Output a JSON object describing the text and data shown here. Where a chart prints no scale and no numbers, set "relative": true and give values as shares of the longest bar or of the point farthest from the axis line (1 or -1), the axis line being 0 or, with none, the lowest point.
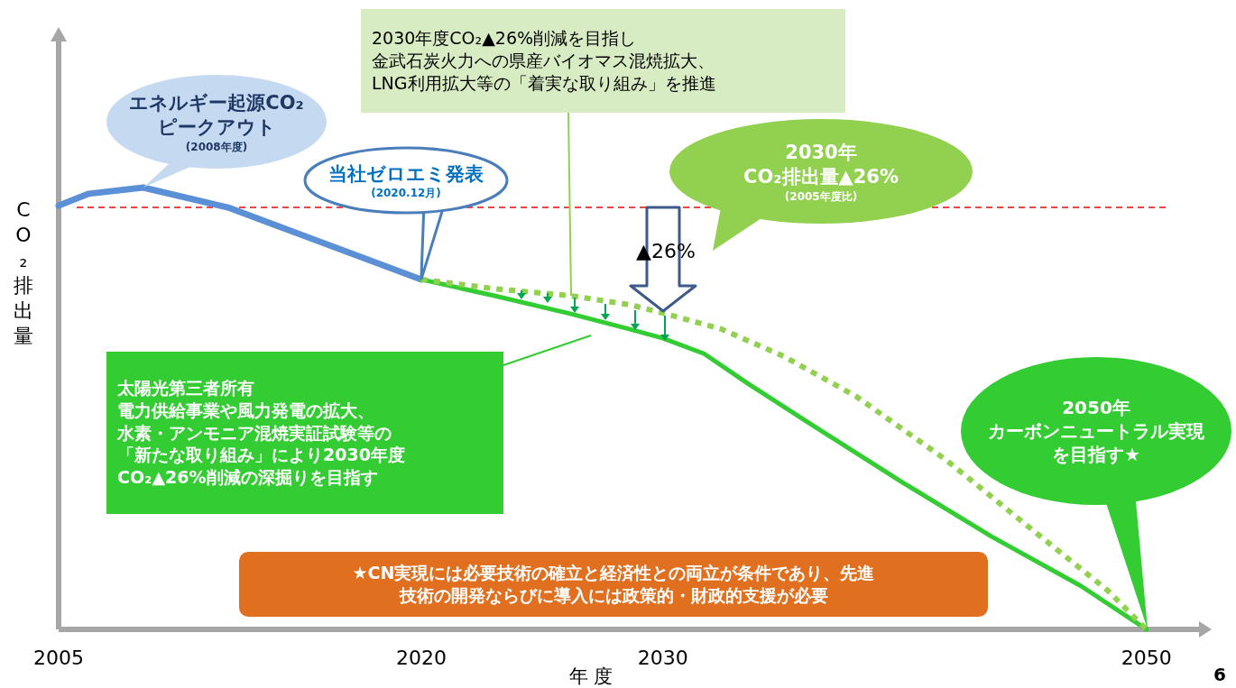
{
  "chart_data": {
    "type": "line",
    "relative": true,
    "xlabel": "年 度",
    "ylabel": "CO₂排出量",
    "xlim": [
      2005,
      2052.4
    ],
    "xticks": [
      2005,
      2020,
      2030,
      2050
    ],
    "series": [
      {
        "color": "#5b8fd6",
        "line_style": "solid",
        "x": [
          2005,
          2006.25,
          2008.5,
          2012,
          2014.5,
          2017,
          2020
        ],
        "values": [
          0.959,
          0.986,
          1.0,
          0.955,
          0.904,
          0.853,
          0.792
        ]
      },
      {
        "color": "#33cc33",
        "line_style": "solid",
        "x": [
          2020,
          2023.03,
          2026.2,
          2028.6,
          2030,
          2031.7,
          2033.5,
          2036.1,
          2039.9,
          2043.6,
          2047.3,
          2050
        ],
        "values": [
          0.792,
          0.755,
          0.714,
          0.68,
          0.659,
          0.624,
          0.557,
          0.465,
          0.333,
          0.21,
          0.098,
          0
        ]
      },
      {
        "color": "#92d050",
        "line_style": "dotted",
        "x": [
          2020,
          2023.03,
          2026.2,
          2028.6,
          2030,
          2032.4,
          2035,
          2038,
          2041.7,
          2045.4,
          2048.4,
          2050
        ],
        "values": [
          0.792,
          0.771,
          0.755,
          0.735,
          0.716,
          0.68,
          0.618,
          0.527,
          0.384,
          0.22,
          0.088,
          0
        ]
      }
    ],
    "ref_lines": [
      {
        "axis": "y",
        "value": 0.955,
        "color": "#ff0000",
        "line_style": "dashed"
      }
    ],
    "annotations": [
      {
        "text": "エネルギー起源CO₂ピークアウト(2008年度)",
        "x": 2008.5,
        "y": 1.0
      },
      {
        "text": "当社ゼロエミ発表(2020.12月)",
        "x": 2020,
        "y": 0.792
      },
      {
        "text": "2030年度CO₂▲26%削減を目指し金武石炭火力への県産バイオマス混焼拡大、LNG利用拡大等の「着実な取り組み」を推進",
        "x": 2026.2,
        "y": 0.755
      },
      "2030年CO₂排出量▲26%(2005年度比)",
      "▲26%",
      "太陽光第三者所有電力供給事業や風力発電の拡大、水素・アンモニア混焼実証試験等の「新たな取り組み」により2030年度CO₂▲26%削減の深掘りを目指す",
      "2050年カーボンニュートラル実現を目指す★",
      "★CN実現には必要技術の確立と経済性との両立が条件であり、先進技術の開発ならびに導入には政策的・財政的支援が必要",
      "6"
    ]
  }
}
